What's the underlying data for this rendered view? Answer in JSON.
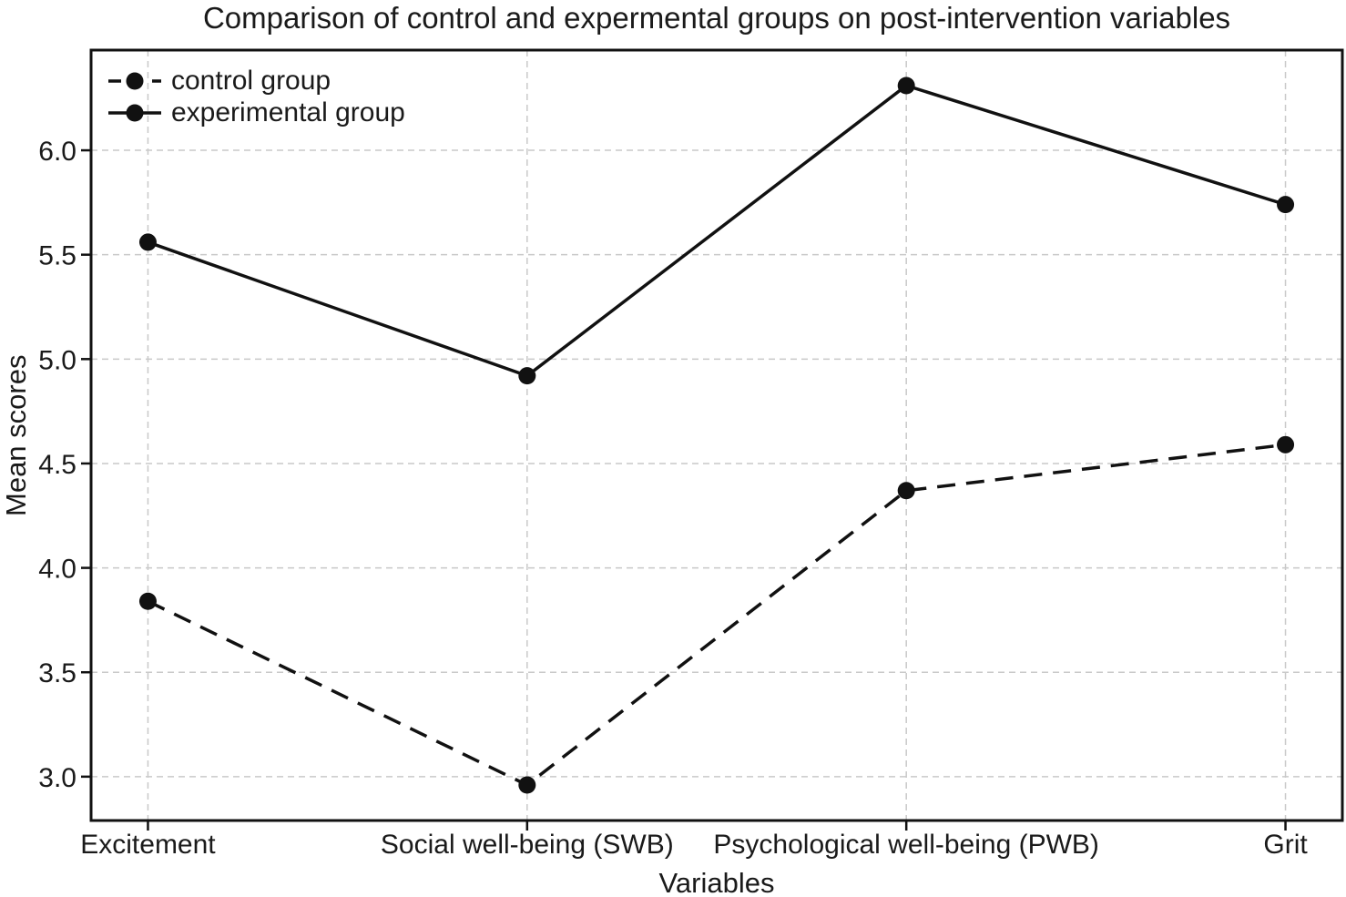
{
  "chart_data": {
    "type": "line",
    "title": "Comparison of control and expermental groups on post-intervention variables",
    "xlabel": "Variables",
    "ylabel": "Mean scores",
    "categories": [
      "Excitement",
      "Social well-being (SWB)",
      "Psychological well-being (PWB)",
      "Grit"
    ],
    "series": [
      {
        "name": "control group",
        "values": [
          3.84,
          2.96,
          4.37,
          4.59
        ],
        "line_style": "dashed",
        "marker": "circle"
      },
      {
        "name": "experimental group",
        "values": [
          5.56,
          4.92,
          6.31,
          5.74
        ],
        "line_style": "solid",
        "marker": "circle"
      }
    ],
    "yticks": [
      3.0,
      3.5,
      4.0,
      4.5,
      5.0,
      5.5,
      6.0
    ],
    "ylim": [
      2.79,
      6.48
    ],
    "xlim": [
      -0.15,
      3.15
    ],
    "grid": true,
    "legend_position": "upper-left",
    "legend_frame": false,
    "colors": {
      "series": "#111111",
      "grid": "#c9c9c9",
      "text": "#1a1a1a",
      "background": "#ffffff"
    }
  }
}
